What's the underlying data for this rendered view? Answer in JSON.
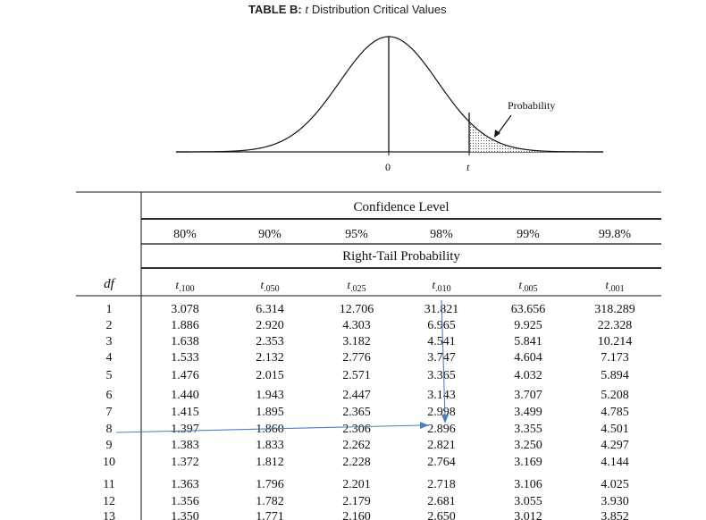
{
  "title": {
    "label": "TABLE B:",
    "var": "t",
    "rest": "Distribution Critical Values"
  },
  "figure": {
    "zero_label": "0",
    "t_label": "t",
    "prob_label": "Probability"
  },
  "table": {
    "group1": "Confidence Level",
    "group2": "Right-Tail Probability",
    "df_label": "df",
    "confidence": [
      "80%",
      "90%",
      "95%",
      "98%",
      "99%",
      "99.8%"
    ],
    "tails": [
      {
        "t": "t",
        "sub": ".100"
      },
      {
        "t": "t",
        "sub": ".050"
      },
      {
        "t": "t",
        "sub": ".025"
      },
      {
        "t": "t",
        "sub": ".010"
      },
      {
        "t": "t",
        "sub": ".005"
      },
      {
        "t": "t",
        "sub": ".001"
      }
    ],
    "rows": [
      [
        "1",
        "3.078",
        "6.314",
        "12.706",
        "31.821",
        "63.656",
        "318.289"
      ],
      [
        "2",
        "1.886",
        "2.920",
        "4.303",
        "6.965",
        "9.925",
        "22.328"
      ],
      [
        "3",
        "1.638",
        "2.353",
        "3.182",
        "4.541",
        "5.841",
        "10.214"
      ],
      [
        "4",
        "1.533",
        "2.132",
        "2.776",
        "3.747",
        "4.604",
        "7.173"
      ],
      [
        "5",
        "1.476",
        "2.015",
        "2.571",
        "3.365",
        "4.032",
        "5.894"
      ],
      [
        "6",
        "1.440",
        "1.943",
        "2.447",
        "3.143",
        "3.707",
        "5.208"
      ],
      [
        "7",
        "1.415",
        "1.895",
        "2.365",
        "2.998",
        "3.499",
        "4.785"
      ],
      [
        "8",
        "1.397",
        "1.860",
        "2.306",
        "2.896",
        "3.355",
        "4.501"
      ],
      [
        "9",
        "1.383",
        "1.833",
        "2.262",
        "2.821",
        "3.250",
        "4.297"
      ],
      [
        "10",
        "1.372",
        "1.812",
        "2.228",
        "2.764",
        "3.169",
        "4.144"
      ],
      [
        "11",
        "1.363",
        "1.796",
        "2.201",
        "2.718",
        "3.106",
        "4.025"
      ],
      [
        "12",
        "1.356",
        "1.782",
        "2.179",
        "2.681",
        "3.055",
        "3.930"
      ],
      [
        "13",
        "1.350",
        "1.771",
        "2.160",
        "2.650",
        "3.012",
        "3.852"
      ]
    ]
  },
  "colors": {
    "annotation": "#4a7fc1",
    "ink": "#111111"
  }
}
